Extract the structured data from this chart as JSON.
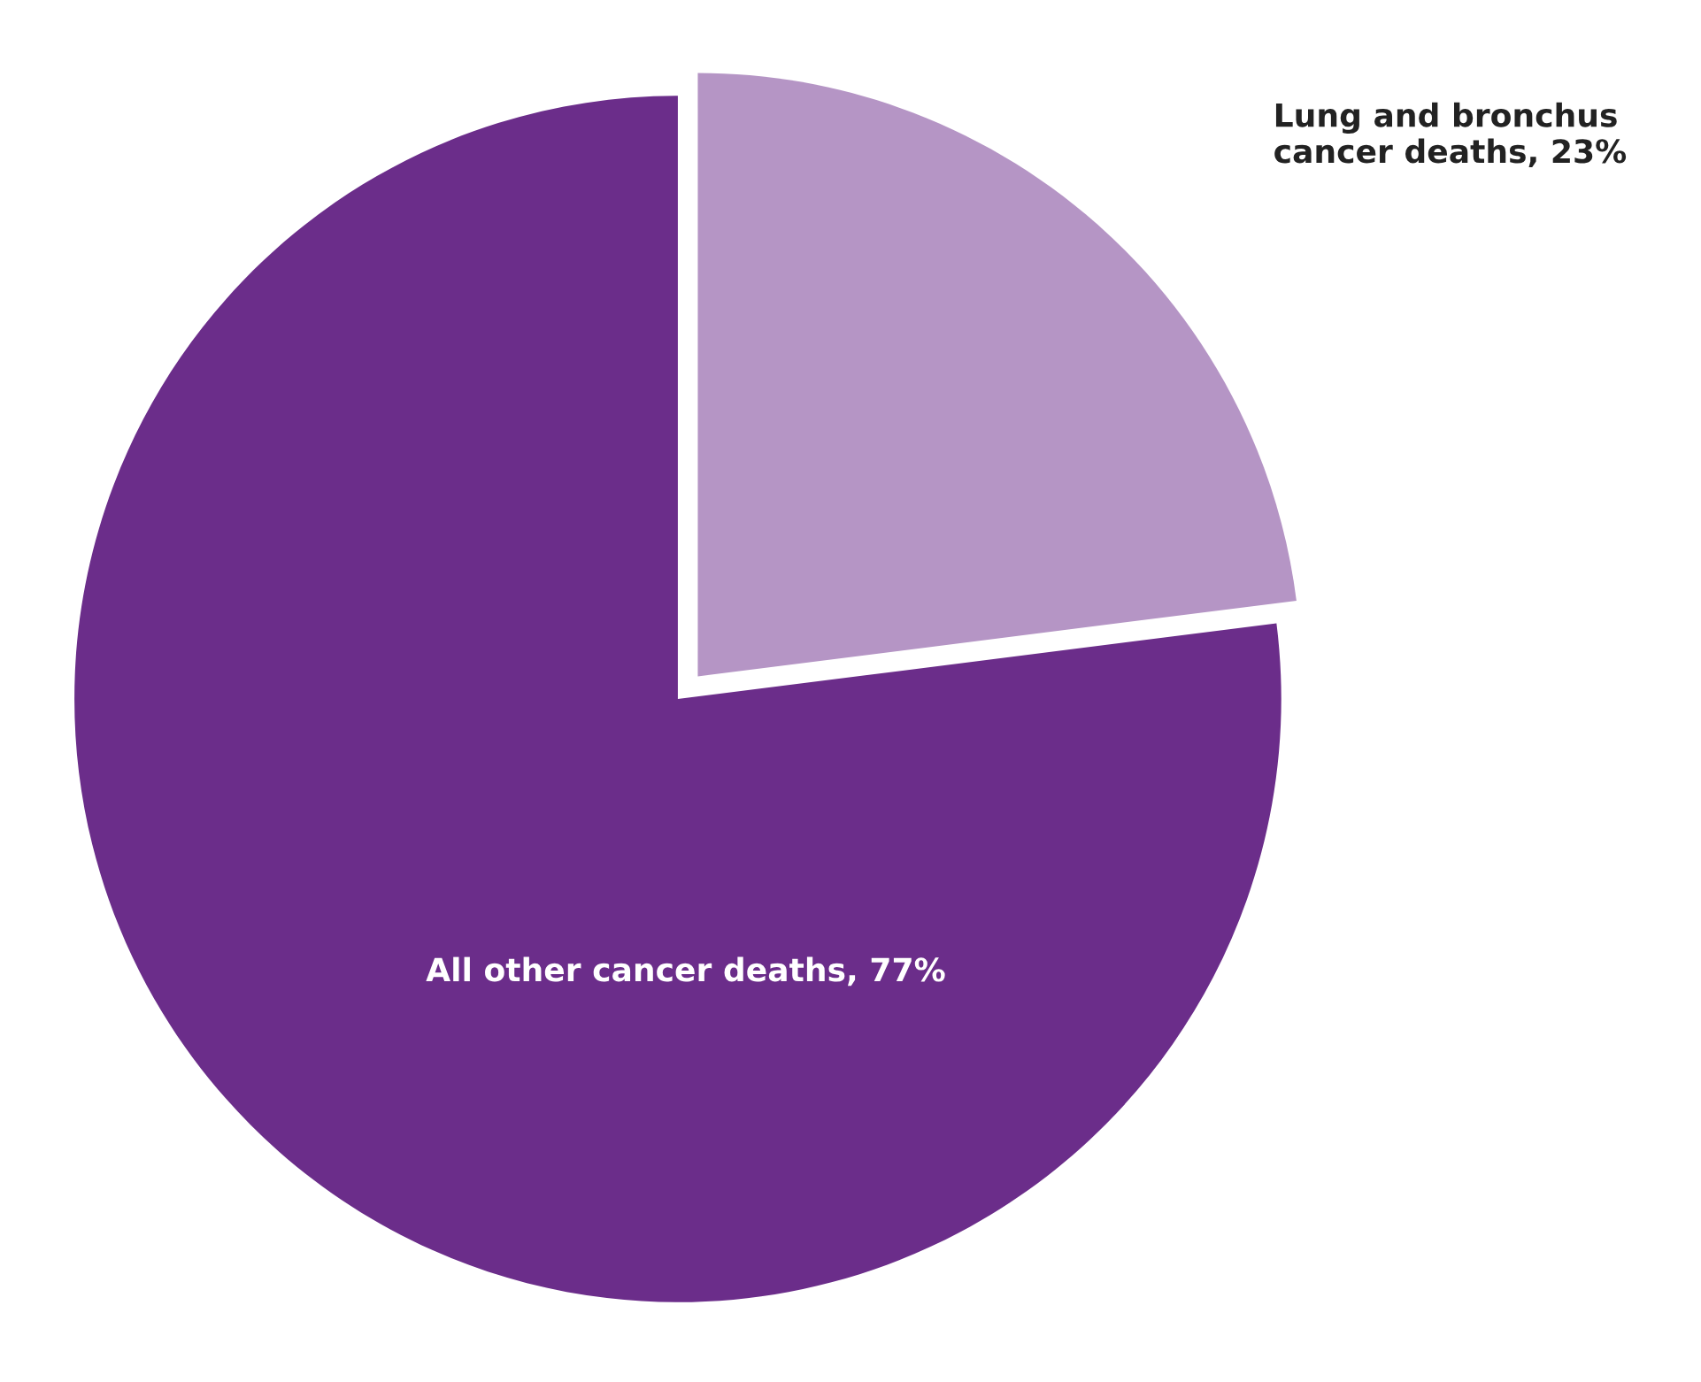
{
  "chart_data": {
    "type": "pie",
    "categories": [
      "Lung and bronchus\ncancer deaths",
      "All other cancer deaths"
    ],
    "values": [
      23,
      77
    ],
    "value_labels": [
      "23%",
      "77%"
    ],
    "colors": [
      "#b595c5",
      "#6b2d8a"
    ],
    "legend": false
  }
}
